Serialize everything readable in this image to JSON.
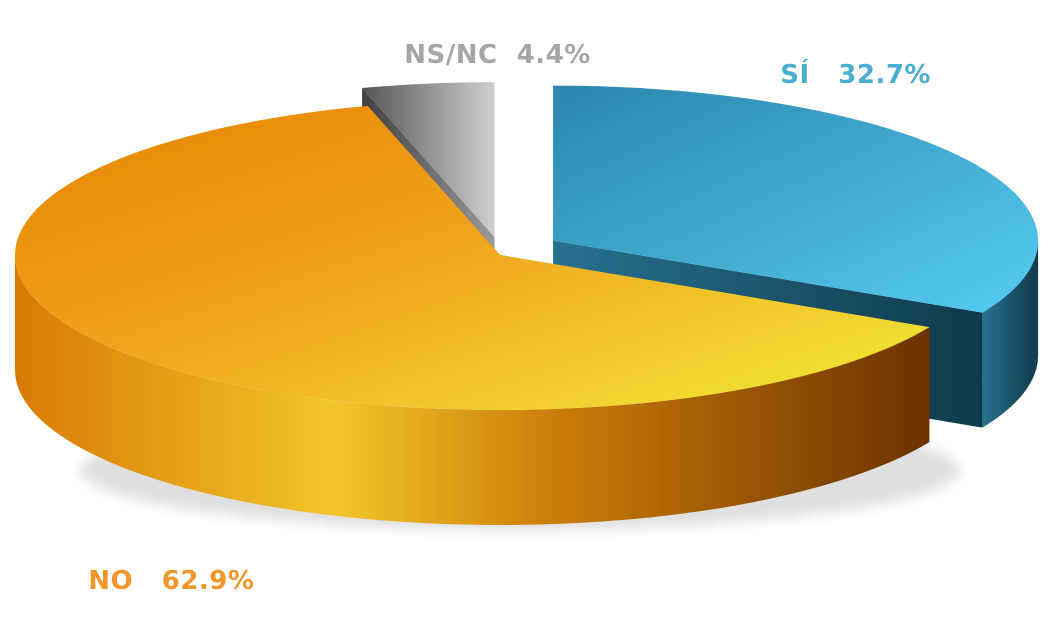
{
  "chart_data": {
    "type": "pie",
    "style": "3d-exploded",
    "slices": [
      {
        "label": "SÍ",
        "value": 32.7,
        "display": "32.7%",
        "color": "#3aa6cc"
      },
      {
        "label": "NO",
        "value": 62.9,
        "display": "62.9%",
        "color": "#eb9a12"
      },
      {
        "label": "NS/NC",
        "value": 4.4,
        "display": "4.4%",
        "color": "#7f7f7f"
      }
    ]
  },
  "labels": {
    "si": {
      "name": "SÍ",
      "value": "32.7%",
      "color": "#4aaed0"
    },
    "no": {
      "name": "NO",
      "value": "62.9%",
      "color": "#f0962a"
    },
    "nsnc": {
      "name": "NS/NC",
      "value": "4.4%",
      "color": "#a6a6a6"
    }
  }
}
